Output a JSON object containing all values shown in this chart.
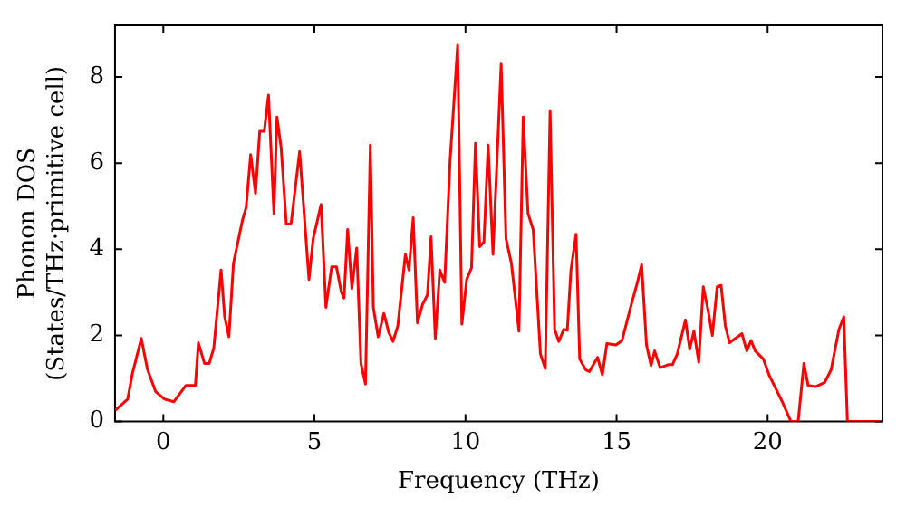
{
  "chart_data": {
    "type": "line",
    "xlabel": "Frequency (THz)",
    "ylabel": "Phonon DOS\n(States/THz·primitive cell)",
    "xlim": [
      -1.6,
      23.8
    ],
    "ylim": [
      0,
      9.2
    ],
    "xticks": [
      0,
      5,
      10,
      15,
      20
    ],
    "yticks": [
      0,
      2,
      4,
      6,
      8
    ],
    "grid": false,
    "legend": false,
    "marker": "none",
    "line_style": "solid",
    "series": [
      {
        "color": "#ff0000",
        "x": [
          -1.59,
          -1.18,
          -1.02,
          -0.73,
          -0.53,
          -0.26,
          0.04,
          0.35,
          0.75,
          1.06,
          1.16,
          1.36,
          1.52,
          1.67,
          1.91,
          2.03,
          2.17,
          2.32,
          2.62,
          2.74,
          2.89,
          3.05,
          3.19,
          3.34,
          3.48,
          3.66,
          3.76,
          3.9,
          4.07,
          4.23,
          4.51,
          4.82,
          4.96,
          5.22,
          5.38,
          5.57,
          5.73,
          5.89,
          5.98,
          6.1,
          6.24,
          6.4,
          6.54,
          6.69,
          6.85,
          6.95,
          7.11,
          7.3,
          7.46,
          7.6,
          7.76,
          8.01,
          8.13,
          8.27,
          8.41,
          8.58,
          8.74,
          8.86,
          9.0,
          9.15,
          9.31,
          9.49,
          9.74,
          9.88,
          10.04,
          10.2,
          10.33,
          10.47,
          10.61,
          10.75,
          10.91,
          11.18,
          11.34,
          11.52,
          11.77,
          11.91,
          12.07,
          12.24,
          12.48,
          12.64,
          12.8,
          12.95,
          13.09,
          13.25,
          13.37,
          13.49,
          13.66,
          13.78,
          13.98,
          14.1,
          14.37,
          14.53,
          14.68,
          14.98,
          15.18,
          15.49,
          15.69,
          15.83,
          15.99,
          16.14,
          16.26,
          16.44,
          16.71,
          16.85,
          17.01,
          17.28,
          17.42,
          17.56,
          17.72,
          17.87,
          18.03,
          18.17,
          18.33,
          18.46,
          18.6,
          18.74,
          19.15,
          19.31,
          19.45,
          19.59,
          19.86,
          20.06,
          20.47,
          20.77,
          21.01,
          21.2,
          21.34,
          21.59,
          21.89,
          22.1,
          22.36,
          22.52,
          22.64,
          23.72
        ],
        "values": [
          0.26,
          0.52,
          1.13,
          1.93,
          1.22,
          0.7,
          0.52,
          0.46,
          0.84,
          0.84,
          1.83,
          1.35,
          1.35,
          1.71,
          3.52,
          2.43,
          1.97,
          3.67,
          4.68,
          4.97,
          6.2,
          5.3,
          6.74,
          6.74,
          7.58,
          4.83,
          7.07,
          6.35,
          4.58,
          4.61,
          6.27,
          3.3,
          4.25,
          5.04,
          2.65,
          3.59,
          3.59,
          3.01,
          2.87,
          4.46,
          3.09,
          4.03,
          1.35,
          0.87,
          6.42,
          2.65,
          1.97,
          2.51,
          2.07,
          1.86,
          2.22,
          3.88,
          3.52,
          4.73,
          2.29,
          2.72,
          2.94,
          4.29,
          1.93,
          3.52,
          3.23,
          6.06,
          8.74,
          2.26,
          3.3,
          3.57,
          6.46,
          4.06,
          4.17,
          6.42,
          3.88,
          8.3,
          4.25,
          3.67,
          2.1,
          7.07,
          4.83,
          4.46,
          1.57,
          1.23,
          7.22,
          2.14,
          1.86,
          2.14,
          2.12,
          3.52,
          4.35,
          1.45,
          1.2,
          1.16,
          1.49,
          1.09,
          1.81,
          1.78,
          1.88,
          2.72,
          3.23,
          3.64,
          1.78,
          1.3,
          1.64,
          1.25,
          1.32,
          1.32,
          1.57,
          2.36,
          1.68,
          2.1,
          1.38,
          3.13,
          2.58,
          2.0,
          3.13,
          3.16,
          2.22,
          1.83,
          2.04,
          1.64,
          1.88,
          1.64,
          1.45,
          1.06,
          0.48,
          0,
          0,
          1.35,
          0.84,
          0.81,
          0.91,
          1.2,
          2.14,
          2.43,
          0,
          0
        ]
      }
    ]
  }
}
